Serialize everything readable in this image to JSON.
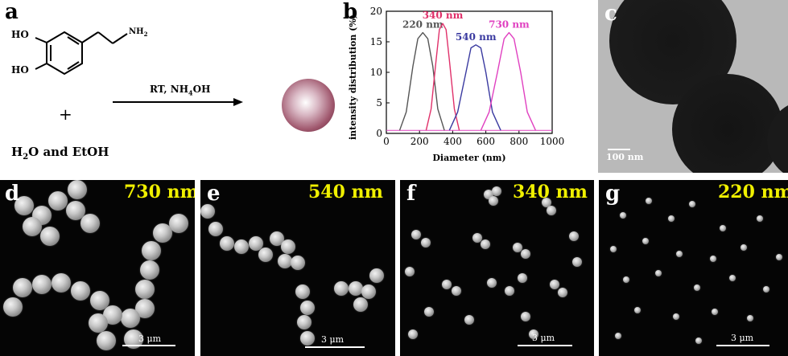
{
  "panels": {
    "a": {
      "letter": "a",
      "oh_top": "HO",
      "oh_bottom": "HO",
      "nh2": "NH",
      "nh2_sub": "2",
      "plus": "+",
      "solvent": "H",
      "solvent_sub": "2",
      "solvent_rest": "O and EtOH",
      "condition_pre": "RT, NH",
      "condition_sub": "4",
      "condition_post": "OH"
    },
    "b": {
      "letter": "b"
    },
    "c": {
      "letter": "c",
      "scalebar": "100 nm"
    },
    "d": {
      "letter": "d",
      "size": "730 nm",
      "scalebar": "3 μm"
    },
    "e": {
      "letter": "e",
      "size": "540 nm",
      "scalebar": "3 μm"
    },
    "f": {
      "letter": "f",
      "size": "340 nm",
      "scalebar": "3 μm"
    },
    "g": {
      "letter": "g",
      "size": "220 nm",
      "scalebar": "3 μm"
    }
  },
  "chart_data": {
    "type": "line",
    "xlabel": "Diameter (nm)",
    "ylabel": "intensity distribution (%)",
    "xlim": [
      0,
      1000
    ],
    "ylim": [
      0,
      20
    ],
    "xticks": [
      0,
      200,
      400,
      600,
      800,
      1000
    ],
    "yticks": [
      0,
      5,
      10,
      15,
      20
    ],
    "series": [
      {
        "name": "220 nm",
        "color": "#555555",
        "x": [
          80,
          120,
          160,
          190,
          220,
          250,
          280,
          310,
          350
        ],
        "y": [
          0.5,
          3.5,
          11,
          15.5,
          16.5,
          15.5,
          11,
          4,
          0.5
        ]
      },
      {
        "name": "340 nm",
        "color": "#e0306a",
        "x": [
          240,
          270,
          300,
          320,
          340,
          360,
          380,
          410,
          440
        ],
        "y": [
          0.5,
          4,
          12,
          17,
          18,
          17,
          12,
          4,
          0.5
        ]
      },
      {
        "name": "540 nm",
        "color": "#3a3aa0",
        "x": [
          380,
          430,
          480,
          510,
          540,
          570,
          600,
          640,
          690
        ],
        "y": [
          0.5,
          3.5,
          10,
          14,
          14.5,
          14,
          10,
          3.5,
          0.5
        ]
      },
      {
        "name": "730 nm",
        "color": "#e040c0",
        "x": [
          570,
          620,
          670,
          710,
          740,
          770,
          810,
          850,
          900
        ],
        "y": [
          0.5,
          3.5,
          10,
          15.5,
          16.5,
          15.5,
          10,
          3.5,
          0.5
        ]
      }
    ]
  }
}
